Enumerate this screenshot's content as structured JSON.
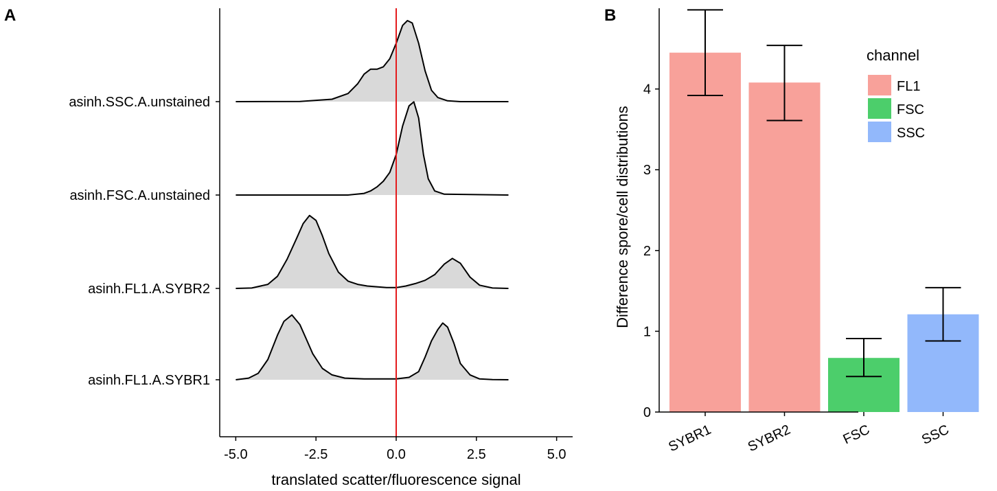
{
  "colors": {
    "ridge_fill": "#d9d9d9",
    "ridge_line": "#000000",
    "ref_line": "#e41a1c",
    "axis": "#000000",
    "FL1": "#f8a19a",
    "FSC": "#4cce6b",
    "SSC": "#92b8fb"
  },
  "chart_data": [
    {
      "panel": "A",
      "type": "area",
      "subtype": "ridgeline",
      "xlabel": "translated scatter/fluorescence signal",
      "ylabel": "",
      "xlim": [
        -5.5,
        5.5
      ],
      "x_ticks": [
        -5,
        -2.5,
        0,
        2.5,
        5
      ],
      "x_tick_labels": [
        "-5.0",
        "-2.5",
        "0.0",
        "2.5",
        "5.0"
      ],
      "reference_line_x": 0,
      "ridges": [
        {
          "label": "asinh.SSC.A.unstained",
          "x": [
            -5,
            -3,
            -2,
            -1.5,
            -1.2,
            -1,
            -0.8,
            -0.6,
            -0.4,
            -0.2,
            0,
            0.2,
            0.35,
            0.5,
            0.7,
            0.9,
            1.1,
            1.3,
            1.6,
            2,
            3.5
          ],
          "y": [
            0,
            0.002,
            0.03,
            0.1,
            0.22,
            0.34,
            0.4,
            0.4,
            0.43,
            0.53,
            0.72,
            0.94,
            1.0,
            0.97,
            0.72,
            0.38,
            0.14,
            0.05,
            0.01,
            0,
            0
          ]
        },
        {
          "label": "asinh.FSC.A.unstained",
          "x": [
            -5,
            -1.5,
            -1,
            -0.8,
            -0.6,
            -0.4,
            -0.2,
            0,
            0.2,
            0.4,
            0.55,
            0.7,
            0.85,
            1,
            1.2,
            1.5,
            3.5
          ],
          "y": [
            0,
            0,
            0.02,
            0.05,
            0.1,
            0.17,
            0.28,
            0.5,
            0.85,
            1.1,
            1.15,
            0.95,
            0.5,
            0.2,
            0.05,
            0.01,
            0
          ]
        },
        {
          "label": "asinh.FL1.A.SYBR2",
          "x": [
            -5,
            -4.5,
            -4,
            -3.7,
            -3.4,
            -3.1,
            -2.9,
            -2.7,
            -2.5,
            -2.3,
            -2.1,
            -1.8,
            -1.5,
            -1.2,
            -0.9,
            -0.6,
            -0.3,
            0,
            0.3,
            0.6,
            0.9,
            1.2,
            1.5,
            1.75,
            2,
            2.3,
            2.6,
            3,
            3.5
          ],
          "y": [
            0,
            0.005,
            0.05,
            0.15,
            0.36,
            0.62,
            0.8,
            0.9,
            0.84,
            0.65,
            0.43,
            0.2,
            0.09,
            0.05,
            0.03,
            0.02,
            0.01,
            0.01,
            0.03,
            0.06,
            0.1,
            0.17,
            0.3,
            0.37,
            0.31,
            0.14,
            0.04,
            0.005,
            0
          ]
        },
        {
          "label": "asinh.FL1.A.SYBR1",
          "x": [
            -5,
            -4.6,
            -4.3,
            -4,
            -3.7,
            -3.5,
            -3.25,
            -3,
            -2.8,
            -2.6,
            -2.3,
            -2,
            -1.6,
            -1,
            -0.5,
            0,
            0.4,
            0.7,
            0.9,
            1.1,
            1.3,
            1.45,
            1.6,
            1.8,
            2,
            2.3,
            2.6,
            3,
            3.5
          ],
          "y": [
            0,
            0.02,
            0.08,
            0.25,
            0.55,
            0.72,
            0.8,
            0.68,
            0.5,
            0.32,
            0.14,
            0.06,
            0.02,
            0.01,
            0.01,
            0.01,
            0.03,
            0.1,
            0.28,
            0.48,
            0.62,
            0.7,
            0.65,
            0.45,
            0.2,
            0.06,
            0.01,
            0.002,
            0
          ]
        }
      ]
    },
    {
      "panel": "B",
      "type": "bar",
      "categories": [
        "SYBR1",
        "SYBR2",
        "FSC",
        "SSC"
      ],
      "values": [
        4.45,
        4.08,
        0.67,
        1.21
      ],
      "error_low": [
        3.92,
        3.61,
        0.44,
        0.88
      ],
      "error_high": [
        4.98,
        4.54,
        0.91,
        1.54
      ],
      "channels": [
        "FL1",
        "FL1",
        "FSC",
        "SSC"
      ],
      "ylabel": "Difference spore/cell distributions",
      "xlabel": "",
      "ylim": [
        0,
        5
      ],
      "y_ticks": [
        0,
        1,
        2,
        3,
        4
      ],
      "legend": {
        "title": "channel",
        "placement": "top-right",
        "entries": [
          "FL1",
          "FSC",
          "SSC"
        ]
      }
    }
  ]
}
